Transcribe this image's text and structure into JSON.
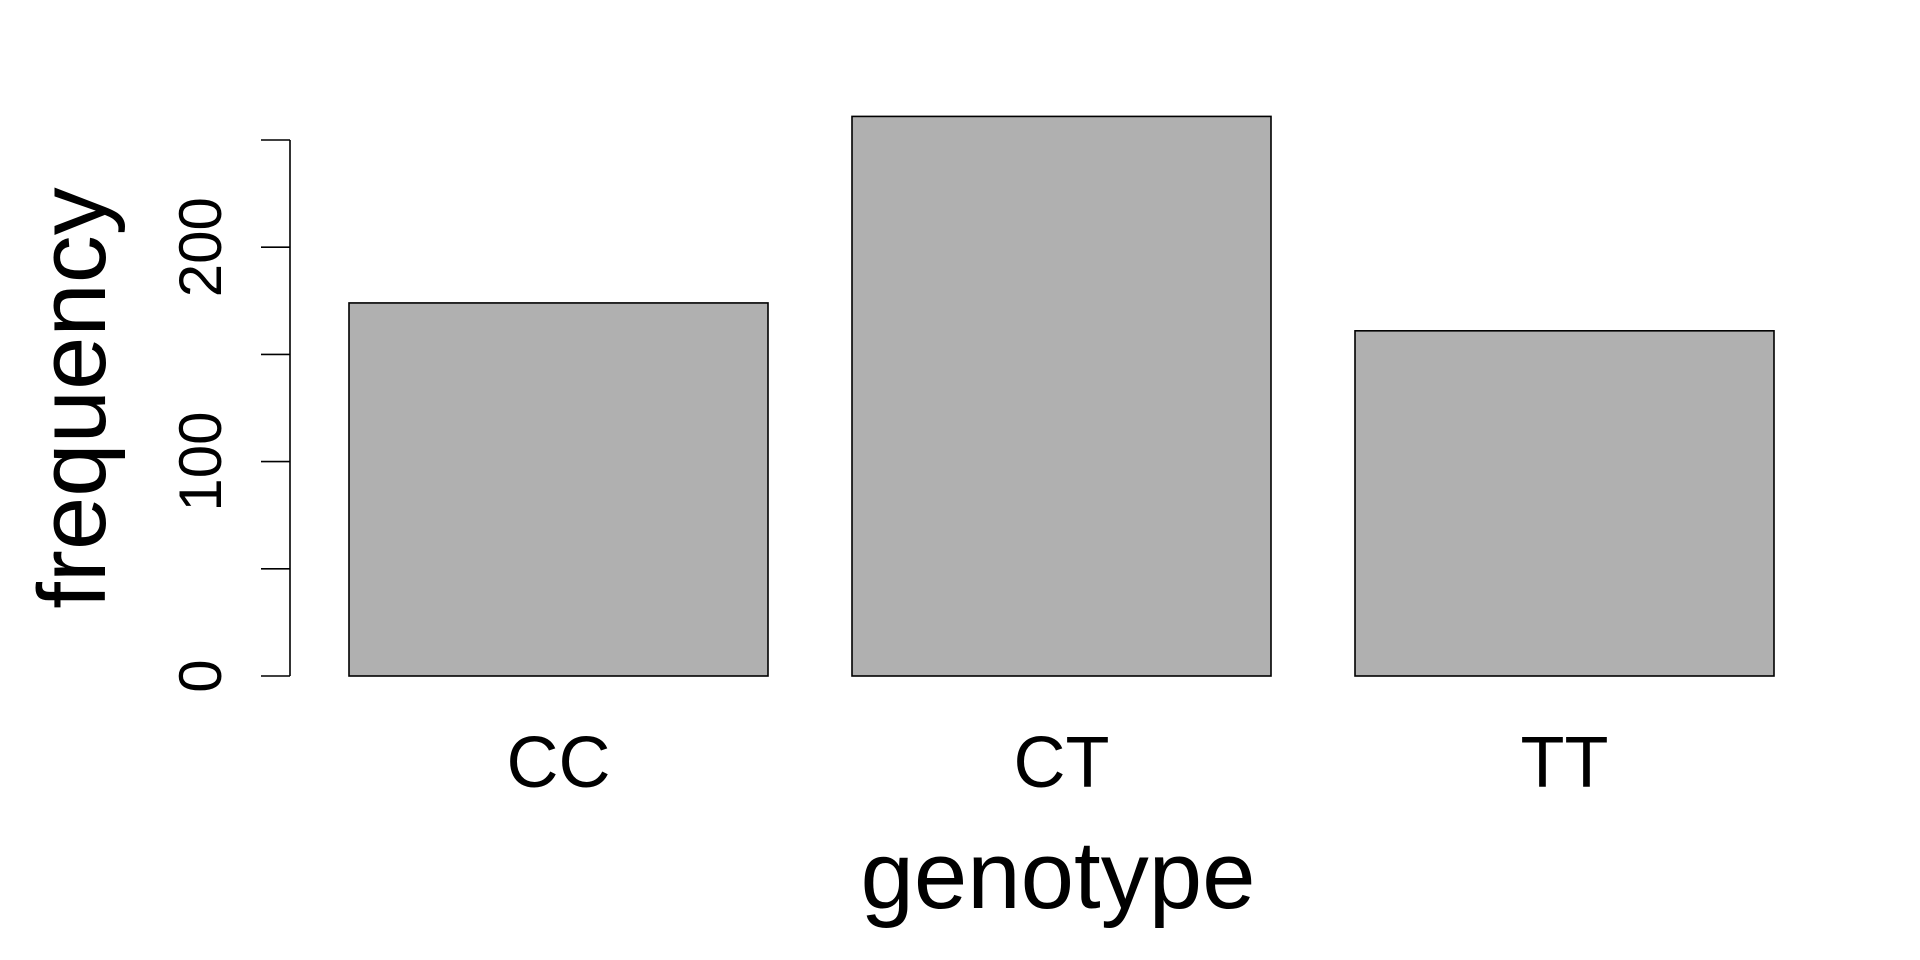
{
  "chart_data": {
    "type": "bar",
    "categories": [
      "CC",
      "CT",
      "TT"
    ],
    "values": [
      174,
      261,
      161
    ],
    "xlabel": "genotype",
    "ylabel": "frequency",
    "ylim": [
      0,
      250
    ],
    "yticks": [
      0,
      50,
      100,
      150,
      200,
      250
    ],
    "ytick_labels": [
      "0",
      "",
      "100",
      "",
      "200",
      ""
    ],
    "grid": false,
    "bar_color": "#b0b0b0",
    "edge_color": "#000000"
  }
}
